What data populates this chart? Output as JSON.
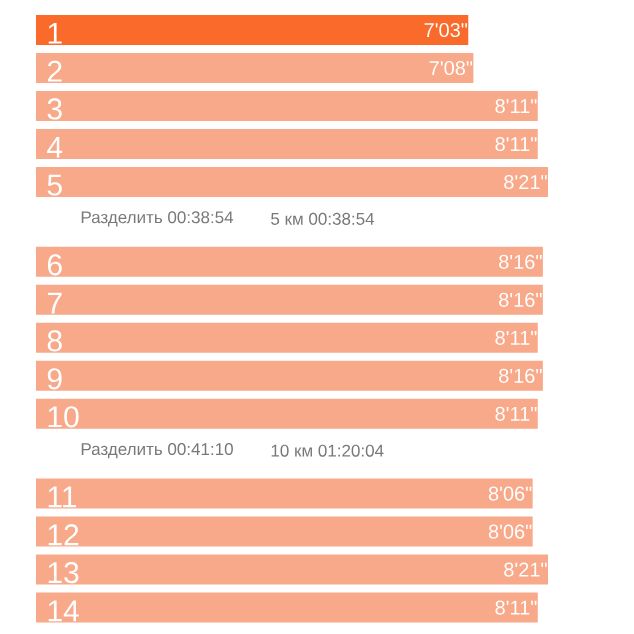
{
  "chart_data": {
    "type": "bar",
    "orientation": "horizontal",
    "tick_labels": false,
    "categories": [
      "1",
      "2",
      "3",
      "4",
      "5",
      "6",
      "7",
      "8",
      "9",
      "10",
      "11",
      "12",
      "13",
      "14"
    ],
    "values": [
      7.05,
      7.1333,
      8.1833,
      8.1833,
      8.35,
      8.2667,
      8.2667,
      8.1833,
      8.2667,
      8.1833,
      8.1,
      8.1,
      8.35,
      8.1833
    ],
    "value_labels": [
      "7'03\"",
      "7'08\"",
      "8'11\"",
      "8'11\"",
      "8'21\"",
      "8'16\"",
      "8'16\"",
      "8'11\"",
      "8'16\"",
      "8'11\"",
      "8'06\"",
      "8'06\"",
      "8'21\"",
      "8'11\""
    ],
    "colors": [
      "#fa6a2a",
      "#f7a98a",
      "#f7a98a",
      "#f7a98a",
      "#f7a98a",
      "#f7a98a",
      "#f7a98a",
      "#f7a98a",
      "#f7a98a",
      "#f7a98a",
      "#f7a98a",
      "#f7a98a",
      "#f7a98a",
      "#f7a98a"
    ],
    "annotations": [
      "Разделить 00:38:54",
      "5 км 00:38:54",
      "Разделить 00:41:10",
      "10 км 01:20:04"
    ]
  }
}
